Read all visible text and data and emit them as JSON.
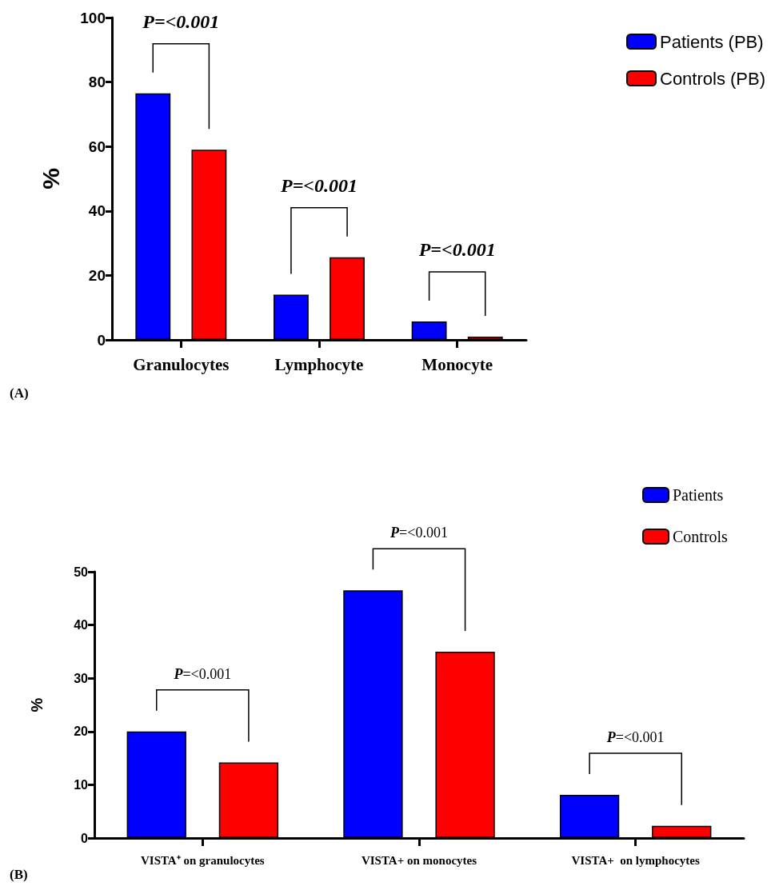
{
  "chart_data": [
    {
      "type": "bar",
      "categories": [
        "Granulocytes",
        "Lymphocyte",
        "Monocyte"
      ],
      "ylabel": "%",
      "ylim": [
        0,
        100
      ],
      "yticks": [
        0,
        20,
        40,
        60,
        80,
        100
      ],
      "grid": false,
      "legend": "top right",
      "series": [
        {
          "name": "Patients (PB)",
          "color": "#0000ff",
          "values": [
            76.5,
            14,
            5.7
          ]
        },
        {
          "name": "Controls (PB)",
          "color": "#ff0000",
          "values": [
            59,
            25.6,
            1
          ]
        }
      ],
      "annotations": [
        "P=<0.001",
        "P=<0.001",
        "P=<0.001",
        "(A)"
      ]
    },
    {
      "type": "bar",
      "categories": [
        "VISTA⁺ on granulocytes",
        "VISTA+ on monocytes",
        "VISTA+  on lymphocytes"
      ],
      "ylabel": "%",
      "ylim": [
        0,
        50
      ],
      "yticks": [
        0,
        10,
        20,
        30,
        40,
        50
      ],
      "grid": false,
      "legend": "top right",
      "series": [
        {
          "name": "Patients",
          "color": "#0000ff",
          "values": [
            20,
            46.5,
            8.1
          ]
        },
        {
          "name": "Controls",
          "color": "#ff0000",
          "values": [
            14.2,
            35,
            2.3
          ]
        }
      ],
      "annotations": [
        "P=<0.001",
        "P=<0.001",
        "P=<0.001",
        "(B)"
      ]
    }
  ]
}
